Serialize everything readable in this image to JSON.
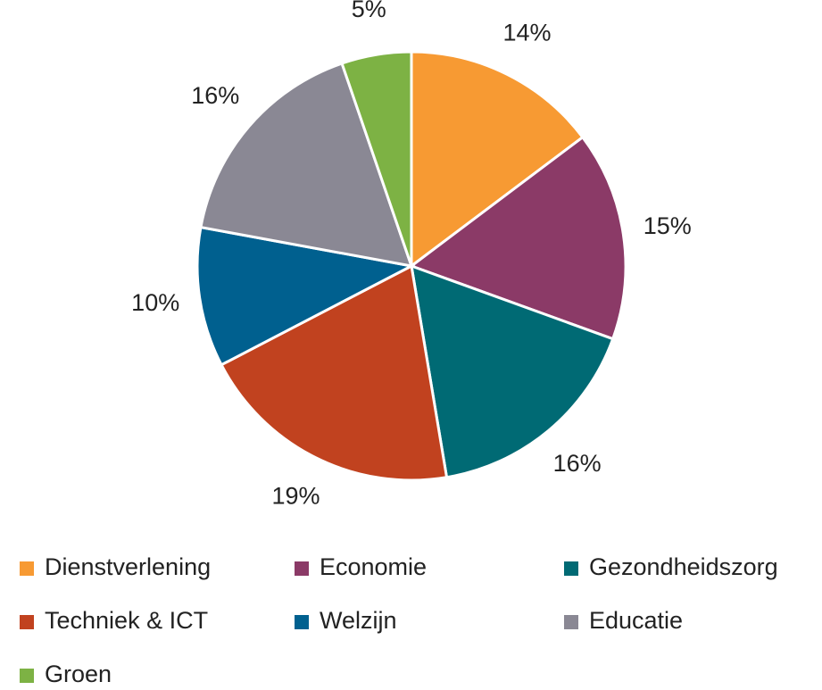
{
  "chart_data": {
    "type": "pie",
    "categories": [
      "Dienstverlening",
      "Economie",
      "Gezondheidszorg",
      "Techniek & ICT",
      "Welzijn",
      "Educatie",
      "Groen"
    ],
    "values": [
      14,
      15,
      16,
      19,
      10,
      16,
      5
    ],
    "value_labels": [
      "14%",
      "15%",
      "16%",
      "19%",
      "10%",
      "16%",
      "5%"
    ],
    "colors": [
      "#f79a33",
      "#8b3a67",
      "#006a74",
      "#c1421f",
      "#00608f",
      "#8a8894",
      "#7db244"
    ],
    "legend": "bottom"
  }
}
